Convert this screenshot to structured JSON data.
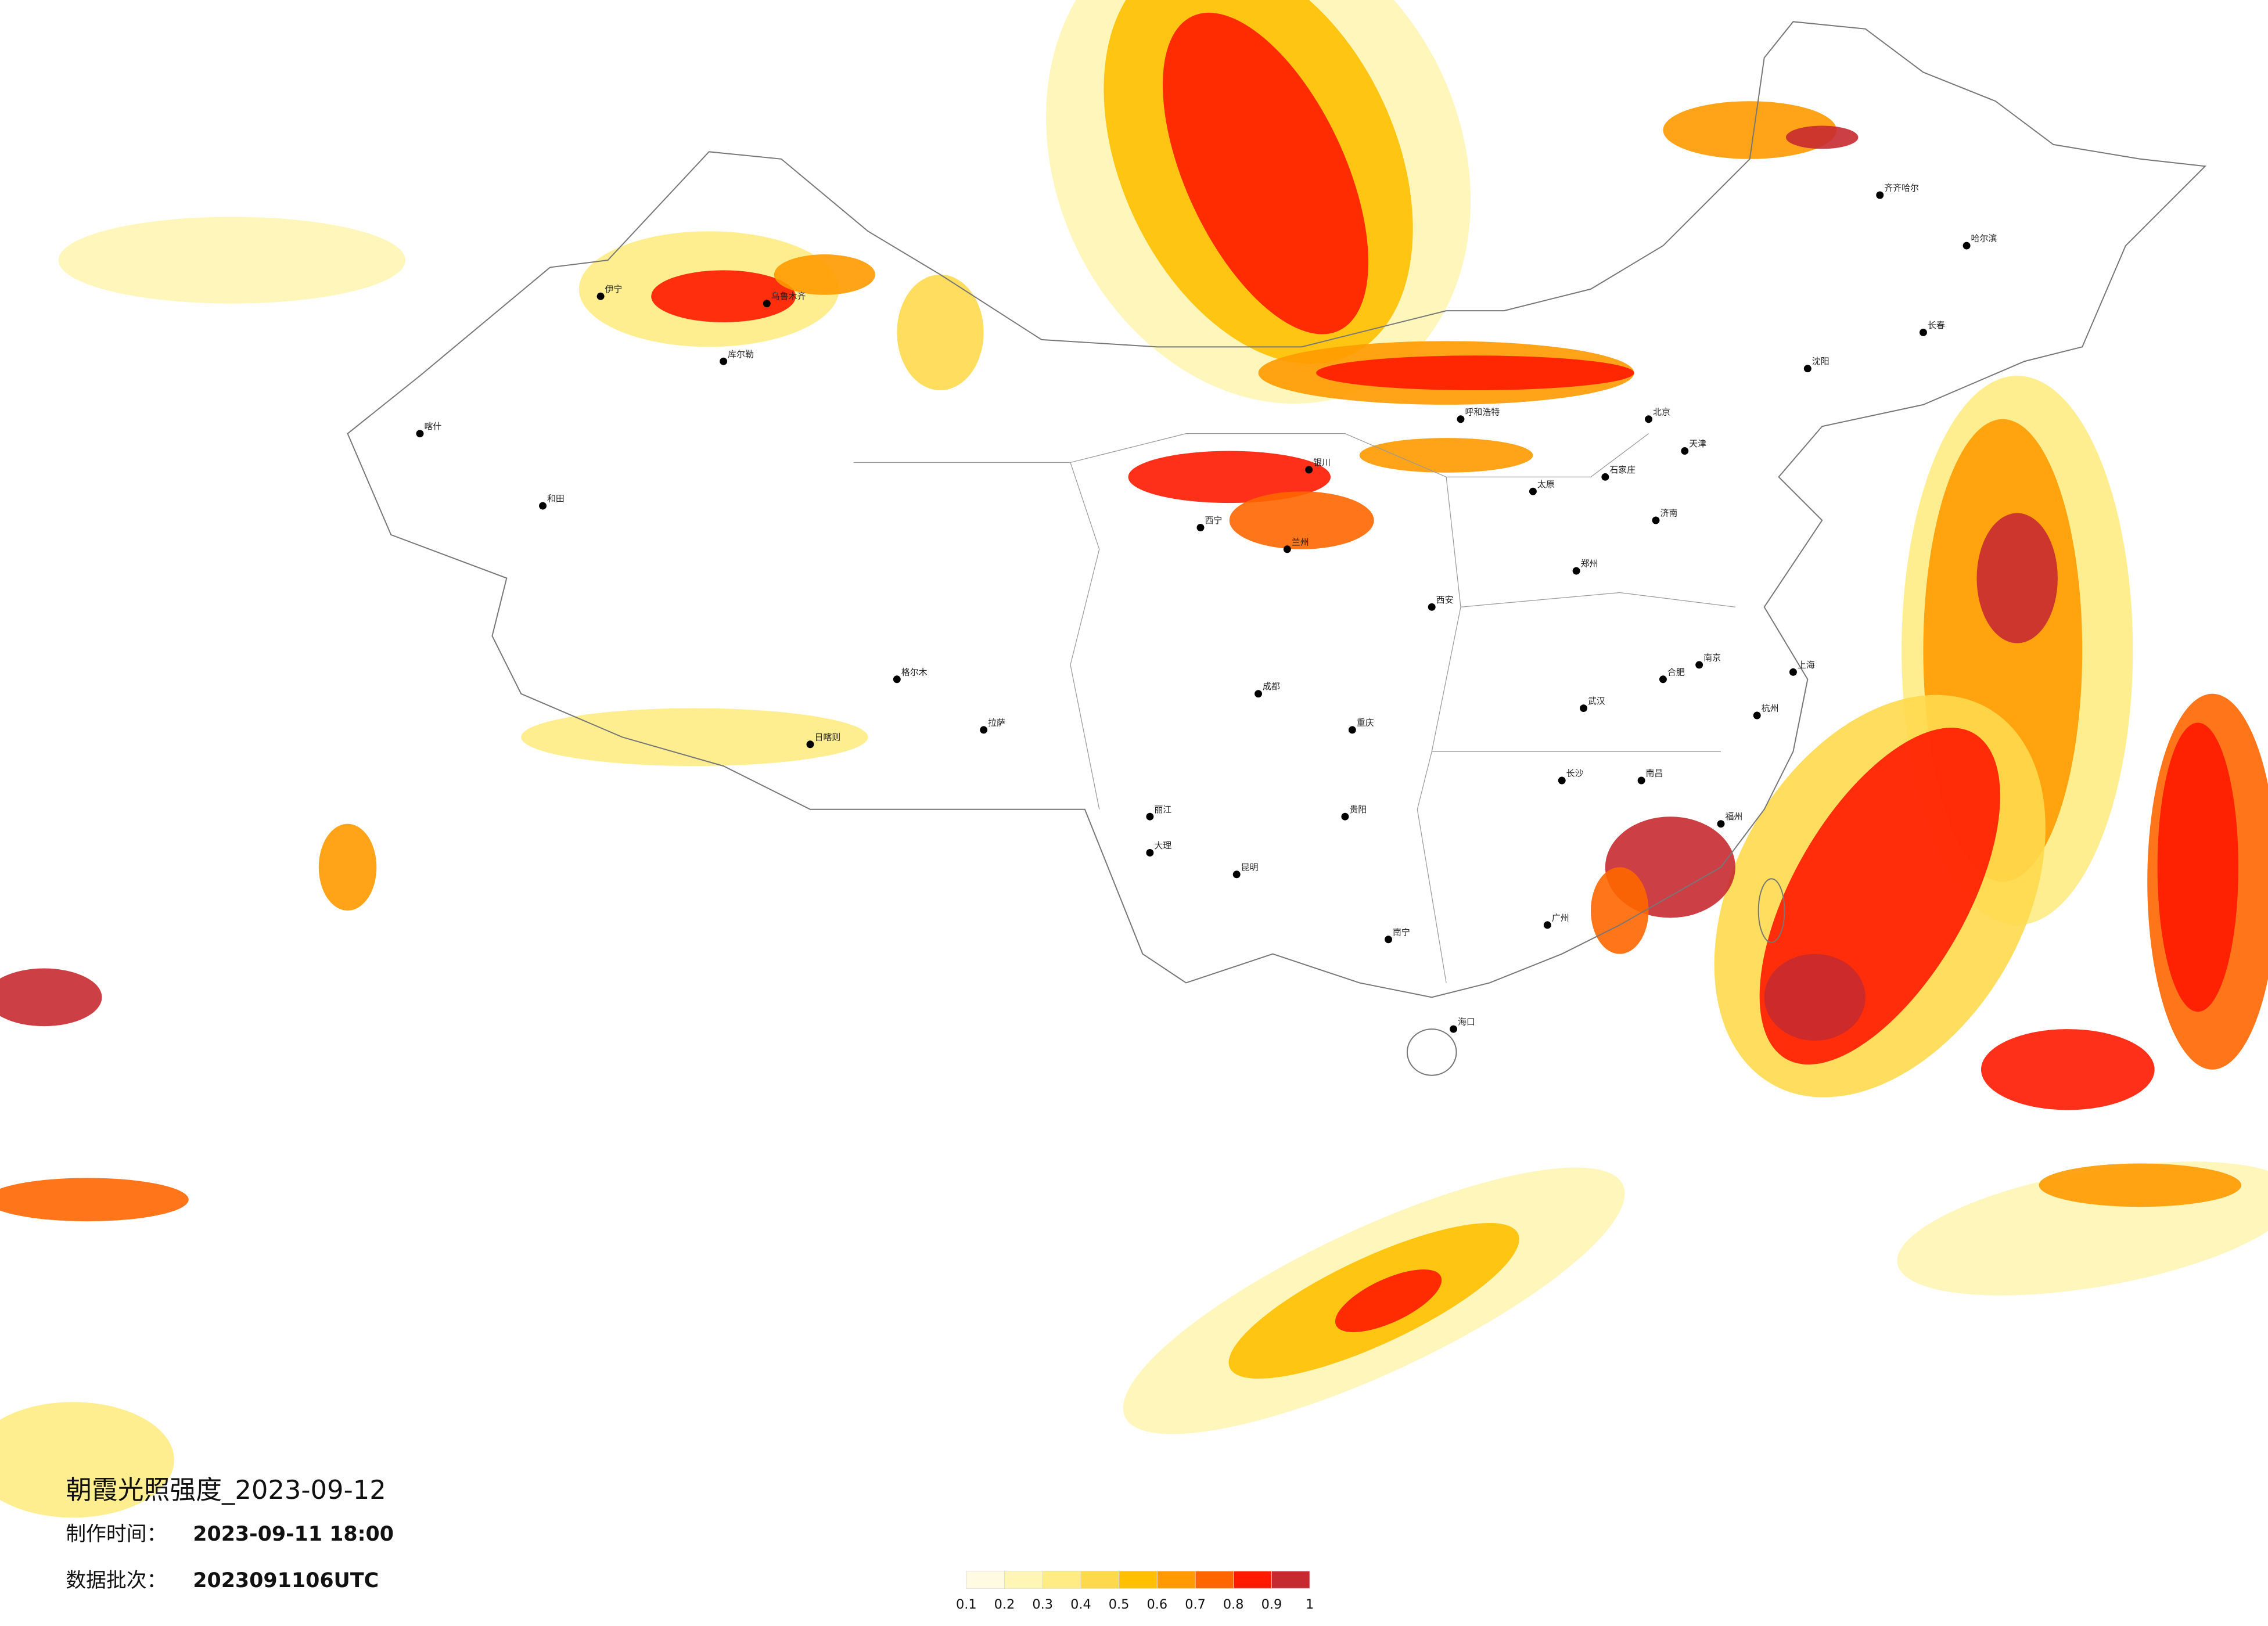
{
  "title": "朝霞光照强度_2023-09-12",
  "made_time_label": "制作时间：",
  "made_time": "2023-09-11 18:00",
  "batch_label": "数据批次：",
  "batch": "2023091106UTC",
  "legend": {
    "values": [
      0.1,
      0.2,
      0.3,
      0.4,
      0.5,
      0.6,
      0.7,
      0.8,
      0.9,
      1
    ],
    "colors": [
      "#fffbe2",
      "#fff5b4",
      "#ffec84",
      "#ffd94c",
      "#ffc000",
      "#ff9a00",
      "#ff6600",
      "#ff1a00",
      "#c62a30"
    ]
  },
  "cities": [
    "北京",
    "天津",
    "石家庄",
    "太原",
    "呼和浩特",
    "沈阳",
    "长春",
    "哈尔滨",
    "济南",
    "郑州",
    "西安",
    "兰州",
    "西宁",
    "银川",
    "乌鲁木齐",
    "拉萨",
    "成都",
    "重庆",
    "贵阳",
    "昆明",
    "南宁",
    "广州",
    "福州",
    "杭州",
    "上海",
    "南京",
    "合肥",
    "武汉",
    "长沙",
    "南昌",
    "海口",
    "齐齐哈尔",
    "喀什",
    "和田",
    "伊宁",
    "库尔勒",
    "格尔木",
    "日喀则",
    "大理",
    "丽江"
  ]
}
